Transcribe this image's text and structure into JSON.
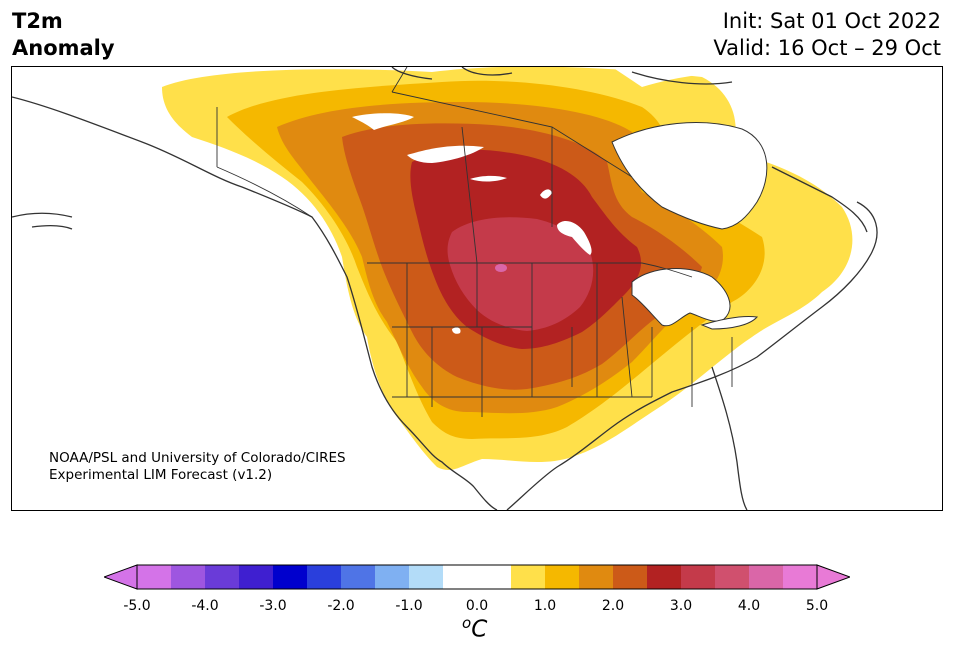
{
  "title": {
    "line1": "T2m",
    "line2": "Anomaly",
    "init": "Init: Sat 01 Oct 2022",
    "valid": "Valid: 16 Oct – 29 Oct"
  },
  "credit": {
    "line1": "NOAA/PSL and University of Colorado/CIRES",
    "line2": "Experimental LIM Forecast (v1.2)"
  },
  "colorbar": {
    "colors": [
      "#d473e8",
      "#9e56e0",
      "#6a3bd8",
      "#3f1fd0",
      "#0000cd",
      "#2a3fdc",
      "#4f74e6",
      "#7fb0f2",
      "#b3dcf8",
      "#ffffff",
      "#ffffff",
      "#ffe04a",
      "#f5b800",
      "#e08a10",
      "#cc5a18",
      "#b22222",
      "#c43a4a",
      "#d0506e",
      "#da66a8",
      "#e87ad6"
    ],
    "ticks": [
      "-5.0",
      "-4.0",
      "-3.0",
      "-2.0",
      "-1.0",
      "0.0",
      "1.0",
      "2.0",
      "3.0",
      "4.0",
      "5.0"
    ],
    "units_base": "C",
    "units_sup": "o"
  },
  "map": {
    "contour_colors": {
      "c1": "#ffe04a",
      "c2": "#f5b800",
      "c3": "#e08a10",
      "c4": "#cc5a18",
      "c5": "#b22222",
      "c6": "#c43a4a"
    }
  }
}
